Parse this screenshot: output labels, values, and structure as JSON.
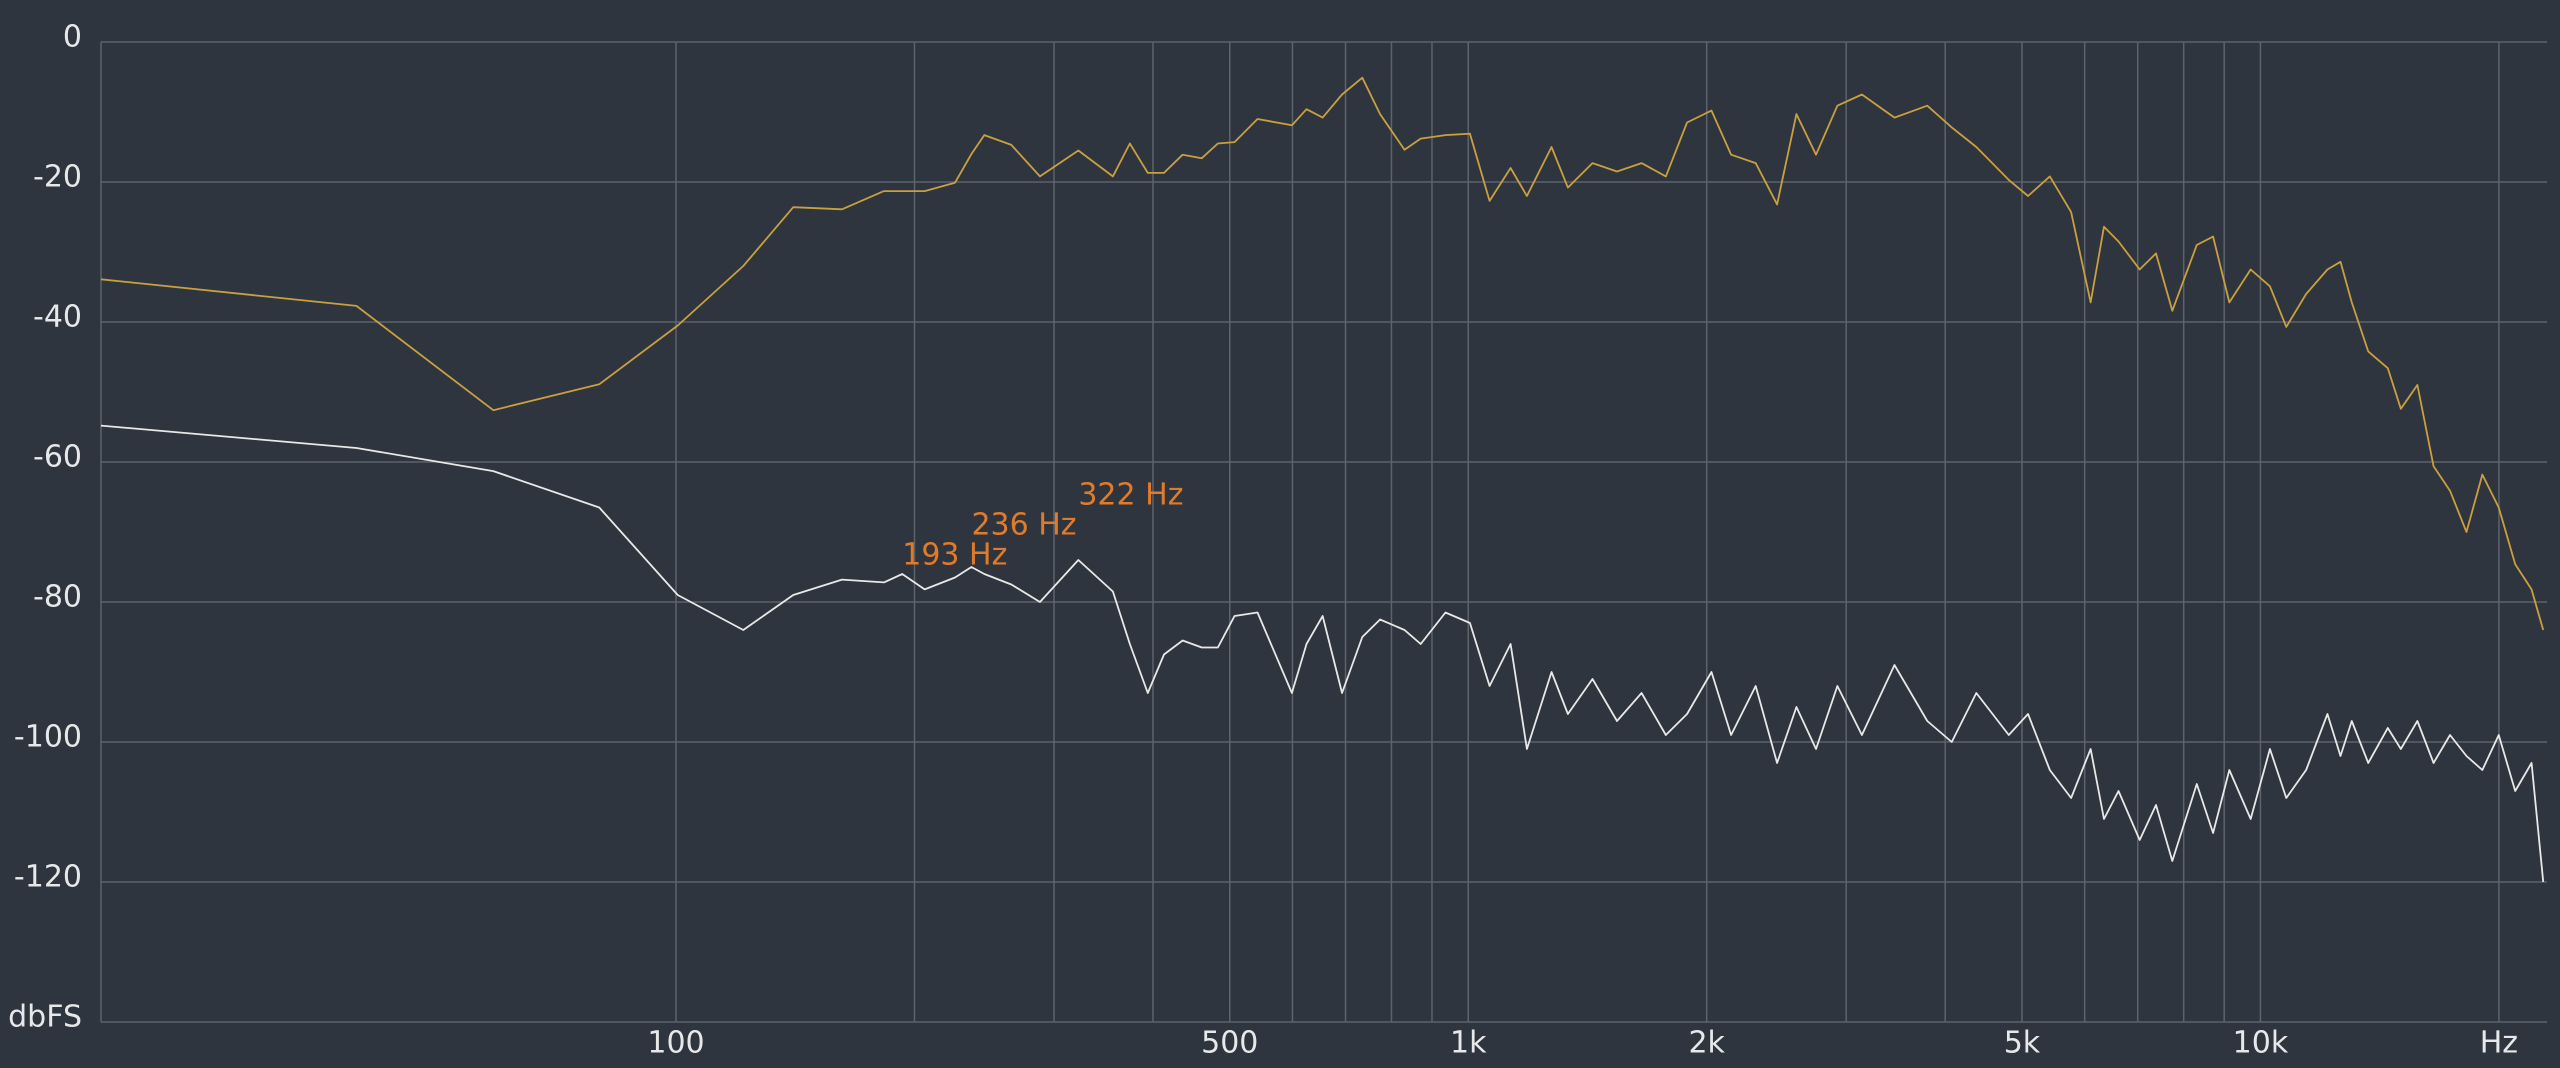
{
  "chart_data": {
    "type": "line",
    "log_x": true,
    "grid": true,
    "x": [
      18.8,
      39.5,
      58.8,
      80,
      100.5,
      121.6,
      140.6,
      162,
      183,
      193,
      206,
      225,
      236,
      245,
      265,
      288,
      322,
      356,
      374,
      394,
      413,
      436,
      461,
      483,
      507,
      542,
      599,
      625,
      655,
      693,
      735,
      774,
      831,
      871,
      936,
      1005,
      1064,
      1131,
      1186,
      1274,
      1336,
      1435,
      1541,
      1655,
      1776,
      1889,
      2028,
      2147,
      2306,
      2454,
      2596,
      2748,
      2924,
      3140,
      3452,
      3797,
      4077,
      4379,
      4812,
      5089,
      5422,
      5768,
      6105,
      6346,
      6620,
      7040,
      7382,
      7740,
      8311,
      8714,
      9136,
      9720,
      10280,
      10780,
      11420,
      12150,
      12620,
      13040,
      13680,
      14480,
      15040,
      15780,
      16540,
      17350,
      18200,
      19060,
      19990,
      20970,
      21990,
      22750
    ],
    "series": [
      {
        "color": "#c9a040",
        "values": [
          -33.9,
          -37.7,
          -52.6,
          -48.9,
          -40.5,
          -32,
          -23.6,
          -23.9,
          -21.3,
          -21.3,
          -21.3,
          -20.1,
          -16,
          -13.3,
          -14.7,
          -19.2,
          -15.5,
          -19.2,
          -14.5,
          -18.7,
          -18.7,
          -16.1,
          -16.6,
          -14.5,
          -14.3,
          -11,
          -11.9,
          -9.6,
          -10.8,
          -7.5,
          -5.1,
          -10.3,
          -15.4,
          -13.8,
          -13.3,
          -13.1,
          -22.7,
          -18,
          -22,
          -15,
          -20.8,
          -17.3,
          -18.5,
          -17.3,
          -19.2,
          -11.5,
          -9.8,
          -16.1,
          -17.3,
          -23.2,
          -10.3,
          -16.1,
          -9.1,
          -7.5,
          -10.8,
          -9.1,
          -12.2,
          -15,
          -19.7,
          -22,
          -19.2,
          -24.3,
          -37.2,
          -26.4,
          -28.5,
          -32.5,
          -30.2,
          -38.4,
          -29,
          -27.8,
          -37.2,
          -32.5,
          -34.9,
          -40.7,
          -36,
          -32.5,
          -31.4,
          -37.2,
          -44.2,
          -46.6,
          -52.4,
          -49,
          -60.6,
          -64.1,
          -70,
          -61.8,
          -66.5,
          -74.6,
          -78.2,
          -84
        ]
      },
      {
        "color": "#e8e8e8",
        "values": [
          -54.8,
          -58,
          -61.3,
          -66.5,
          -79,
          -84,
          -79,
          -76.8,
          -77.2,
          -76,
          -78.2,
          -76.5,
          -75,
          -76,
          -77.5,
          -80,
          -74,
          -78.5,
          -86,
          -93,
          -87.5,
          -85.5,
          -86.5,
          -86.5,
          -82,
          -81.5,
          -93,
          -86,
          -82,
          -93,
          -85,
          -82.5,
          -84,
          -86,
          -81.5,
          -83,
          -92,
          -86,
          -101,
          -90,
          -96,
          -91,
          -97,
          -93,
          -99,
          -96,
          -90,
          -99,
          -92,
          -103,
          -95,
          -101,
          -92,
          -99,
          -89,
          -97,
          -100,
          -93,
          -99,
          -96,
          -104,
          -108,
          -101,
          -111,
          -107,
          -114,
          -109,
          -117,
          -106,
          -113,
          -104,
          -111,
          -101,
          -108,
          -104,
          -96,
          -102,
          -97,
          -103,
          -98,
          -101,
          -97,
          -103,
          -99,
          -102,
          -104,
          -99,
          -107,
          -103,
          -120
        ]
      }
    ],
    "annotations": [
      {
        "text": "193 Hz",
        "x": 193,
        "color": "#e07b2a"
      },
      {
        "text": "236 Hz",
        "x": 236,
        "color": "#e07b2a"
      },
      {
        "text": "322 Hz",
        "x": 322,
        "color": "#e07b2a"
      }
    ],
    "xlim": [
      18.8,
      23000
    ],
    "xticks": [
      100,
      500,
      {
        "value": 1000,
        "label": "1k"
      },
      {
        "value": 2000,
        "label": "2k"
      },
      {
        "value": 5000,
        "label": "5k"
      },
      {
        "value": 10000,
        "label": "10k"
      },
      {
        "value": 20000,
        "label": "Hz"
      }
    ],
    "xgrid": [
      200,
      300,
      400,
      600,
      700,
      800,
      900,
      3000,
      4000,
      6000,
      7000,
      8000,
      9000
    ],
    "ylim": [
      -140,
      0
    ],
    "yticks": [
      0,
      -20,
      -40,
      -60,
      -80,
      -100,
      -120,
      {
        "value": -140,
        "label": "dbFS"
      }
    ]
  }
}
